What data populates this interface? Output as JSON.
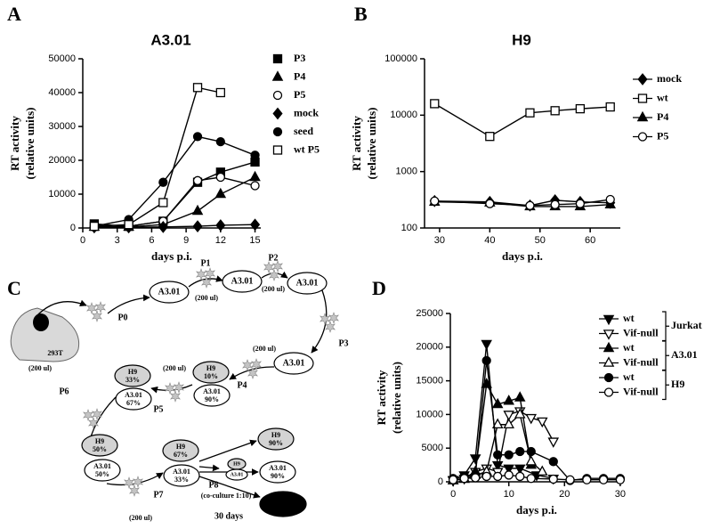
{
  "chart_data": [
    {
      "type": "line",
      "panel": "A",
      "title": "A3.01",
      "ylabel": [
        "RT activity",
        "(relative units)"
      ],
      "xlabel": "days p.i.",
      "xlim": [
        0,
        15.5
      ],
      "xticks": [
        0,
        3,
        6,
        9,
        12,
        15
      ],
      "ylim": [
        0,
        50000
      ],
      "yticks": [
        0,
        10000,
        20000,
        30000,
        40000,
        50000
      ],
      "log_y": false,
      "color": "#000000",
      "series": [
        {
          "name": "P3",
          "marker": "square",
          "filled": true,
          "x": [
            1,
            4,
            7,
            10,
            12,
            15
          ],
          "values": [
            1200,
            500,
            2000,
            13500,
            16500,
            19500
          ]
        },
        {
          "name": "P4",
          "marker": "triangle",
          "filled": true,
          "x": [
            1,
            4,
            7,
            10,
            12,
            15
          ],
          "values": [
            300,
            300,
            1000,
            5000,
            10000,
            15000
          ]
        },
        {
          "name": "P5",
          "marker": "circle",
          "filled": false,
          "x": [
            1,
            4,
            7,
            10,
            12,
            15
          ],
          "values": [
            300,
            500,
            2000,
            14000,
            15000,
            12500
          ]
        },
        {
          "name": "mock",
          "marker": "diamond",
          "filled": true,
          "x": [
            1,
            4,
            7,
            10,
            12,
            15
          ],
          "values": [
            200,
            200,
            300,
            500,
            800,
            1000
          ]
        },
        {
          "name": "seed",
          "marker": "circle",
          "filled": true,
          "x": [
            1,
            4,
            7,
            10,
            12,
            15
          ],
          "values": [
            500,
            2500,
            13500,
            27000,
            25500,
            21500
          ]
        },
        {
          "name": "wt P5",
          "marker": "square",
          "filled": false,
          "x": [
            1,
            4,
            7,
            10,
            12
          ],
          "values": [
            500,
            1000,
            7500,
            41500,
            40000
          ]
        }
      ]
    },
    {
      "type": "line",
      "panel": "B",
      "title": "H9",
      "ylabel": [
        "RT activity",
        "(relative units)"
      ],
      "xlabel": "days p.i.",
      "xlim": [
        27,
        66
      ],
      "xticks": [
        30,
        40,
        50,
        60
      ],
      "ylim": [
        100,
        100000
      ],
      "yticks": [
        100,
        1000,
        10000,
        100000
      ],
      "log_y": true,
      "color": "#000000",
      "series": [
        {
          "name": "mock",
          "marker": "diamond",
          "filled": true,
          "x": [
            29,
            40,
            48,
            53,
            58,
            64
          ],
          "values": [
            300,
            290,
            250,
            310,
            290,
            280
          ]
        },
        {
          "name": "wt",
          "marker": "square",
          "filled": false,
          "x": [
            29,
            40,
            48,
            53,
            58,
            64
          ],
          "values": [
            16000,
            4200,
            11000,
            12000,
            13000,
            14000
          ]
        },
        {
          "name": "P4",
          "marker": "triangle",
          "filled": true,
          "x": [
            29,
            40,
            48,
            53,
            58,
            64
          ],
          "values": [
            290,
            280,
            240,
            240,
            240,
            260
          ]
        },
        {
          "name": "P5",
          "marker": "circle",
          "filled": false,
          "x": [
            29,
            40,
            48,
            53,
            58,
            64
          ],
          "values": [
            300,
            270,
            250,
            260,
            270,
            320
          ]
        }
      ]
    },
    {
      "type": "line",
      "panel": "D",
      "ylabel": [
        "RT activity",
        "(relative units)"
      ],
      "xlabel": "days p.i.",
      "xlim": [
        -0.5,
        30.5
      ],
      "xticks": [
        0,
        10,
        20,
        30
      ],
      "ylim": [
        0,
        25000
      ],
      "yticks": [
        0,
        5000,
        10000,
        15000,
        20000,
        25000
      ],
      "log_y": false,
      "color": "#000000",
      "legend_groups": [
        "Jurkat",
        "A3.01",
        "H9"
      ],
      "series": [
        {
          "name": "wt",
          "marker": "triangle-down",
          "filled": true,
          "x": [
            0,
            2,
            4,
            6,
            8,
            10,
            12,
            15,
            18
          ],
          "values": [
            300,
            1000,
            3500,
            20500,
            2500,
            2000,
            2000,
            1000,
            500
          ]
        },
        {
          "name": "Vif-null",
          "marker": "triangle-down",
          "filled": false,
          "x": [
            0,
            2,
            4,
            6,
            8,
            10,
            12,
            14,
            16,
            18
          ],
          "values": [
            200,
            500,
            1500,
            2000,
            1500,
            10000,
            10500,
            9500,
            9000,
            6000
          ]
        },
        {
          "name": "wt",
          "marker": "triangle",
          "filled": true,
          "x": [
            0,
            2,
            4,
            6,
            8,
            10,
            12,
            14
          ],
          "values": [
            200,
            500,
            1500,
            14500,
            11500,
            12000,
            12500,
            2500
          ]
        },
        {
          "name": "Vif-null",
          "marker": "triangle",
          "filled": false,
          "x": [
            0,
            2,
            4,
            6,
            8,
            10,
            12,
            14,
            16
          ],
          "values": [
            200,
            400,
            1000,
            1500,
            8500,
            8500,
            10000,
            3000,
            1500
          ]
        },
        {
          "name": "wt",
          "marker": "circle",
          "filled": true,
          "x": [
            0,
            2,
            4,
            6,
            8,
            10,
            12,
            14,
            18,
            21,
            24,
            27,
            30
          ],
          "values": [
            500,
            800,
            1000,
            18000,
            4000,
            4000,
            4500,
            4500,
            3000,
            200,
            500,
            500,
            500
          ]
        },
        {
          "name": "Vif-null",
          "marker": "circle",
          "filled": false,
          "x": [
            0,
            2,
            4,
            6,
            8,
            10,
            12,
            14,
            18,
            21,
            24,
            27,
            30
          ],
          "values": [
            300,
            500,
            600,
            800,
            800,
            1000,
            800,
            500,
            400,
            300,
            300,
            300,
            300
          ]
        }
      ]
    }
  ],
  "diagram": {
    "panel": "C",
    "cell": "293T",
    "steps": [
      "P0",
      "P1",
      "P2",
      "P3",
      "P4",
      "P5",
      "P6",
      "P7",
      "P8"
    ],
    "volumes": [
      "(200 ul)",
      "(200 ul)",
      "(200 ul)",
      "(200 ul)",
      "(200 ul)",
      "(200 ul)"
    ],
    "co_culture": "(co-culture 1:10)",
    "duration": "30 days",
    "ellipses": [
      {
        "lines": [
          "A3.01"
        ],
        "fill": "#ffffff"
      },
      {
        "lines": [
          "A3.01"
        ],
        "fill": "#ffffff"
      },
      {
        "lines": [
          "A3.01"
        ],
        "fill": "#ffffff"
      },
      {
        "lines": [
          "A3.01"
        ],
        "fill": "#ffffff"
      },
      {
        "lines": [
          "H9",
          "10%"
        ],
        "fill": "#d3d3d3"
      },
      {
        "lines": [
          "A3.01",
          "90%"
        ],
        "fill": "#ffffff"
      },
      {
        "lines": [
          "H9",
          "33%"
        ],
        "fill": "#d3d3d3"
      },
      {
        "lines": [
          "A3.01",
          "67%"
        ],
        "fill": "#ffffff"
      },
      {
        "lines": [
          "H9",
          "50%"
        ],
        "fill": "#d3d3d3"
      },
      {
        "lines": [
          "A3.01",
          "50%"
        ],
        "fill": "#ffffff"
      },
      {
        "lines": [
          "H9",
          "67%"
        ],
        "fill": "#d3d3d3"
      },
      {
        "lines": [
          "A3.01",
          "33%"
        ],
        "fill": "#ffffff"
      },
      {
        "lines": [
          "H9"
        ],
        "fill": "#d3d3d3"
      },
      {
        "lines": [
          "A3.01"
        ],
        "fill": "#ffffff"
      },
      {
        "lines": [
          "H9",
          "90%"
        ],
        "fill": "#d3d3d3"
      },
      {
        "lines": [
          "A3.01",
          "90%"
        ],
        "fill": "#ffffff"
      },
      {
        "lines": [],
        "fill": "#000000"
      }
    ]
  }
}
